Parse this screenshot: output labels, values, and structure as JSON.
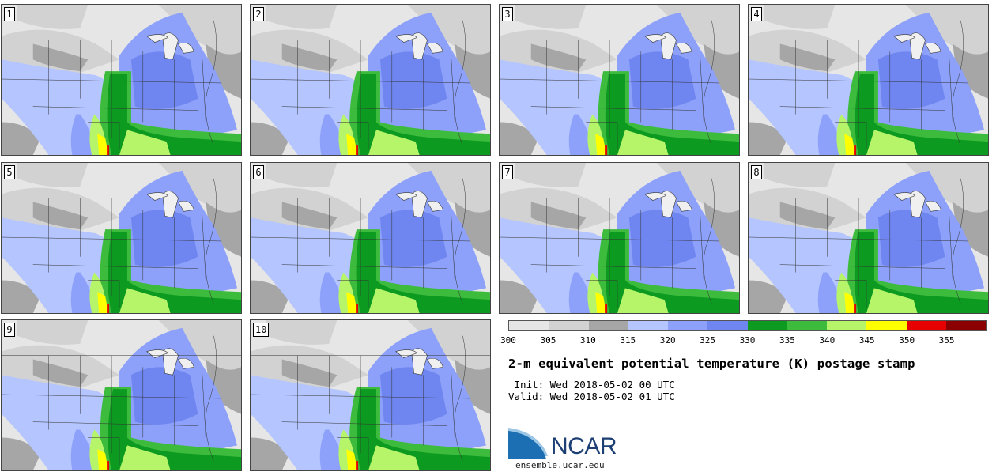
{
  "panels": [
    {
      "label": "1"
    },
    {
      "label": "2"
    },
    {
      "label": "3"
    },
    {
      "label": "4"
    },
    {
      "label": "5"
    },
    {
      "label": "6"
    },
    {
      "label": "7"
    },
    {
      "label": "8"
    },
    {
      "label": "9"
    },
    {
      "label": "10"
    }
  ],
  "colorbar": {
    "colors": [
      "#e6e6e6",
      "#d2d2d2",
      "#a6a6a6",
      "#b4c5ff",
      "#8da1fa",
      "#6f86f0",
      "#0d9a20",
      "#3dbb3d",
      "#b6f56a",
      "#ffff00",
      "#e60000",
      "#8b0000"
    ],
    "ticks": [
      "300",
      "305",
      "310",
      "315",
      "320",
      "325",
      "330",
      "335",
      "340",
      "345",
      "350",
      "355"
    ]
  },
  "title": "2-m equivalent potential temperature (K) postage stamp",
  "init": " Init: Wed 2018-05-02 00 UTC",
  "valid": "Valid: Wed 2018-05-02 01 UTC",
  "logo": {
    "text": "NCAR"
  },
  "site": "ensemble.ucar.edu"
}
